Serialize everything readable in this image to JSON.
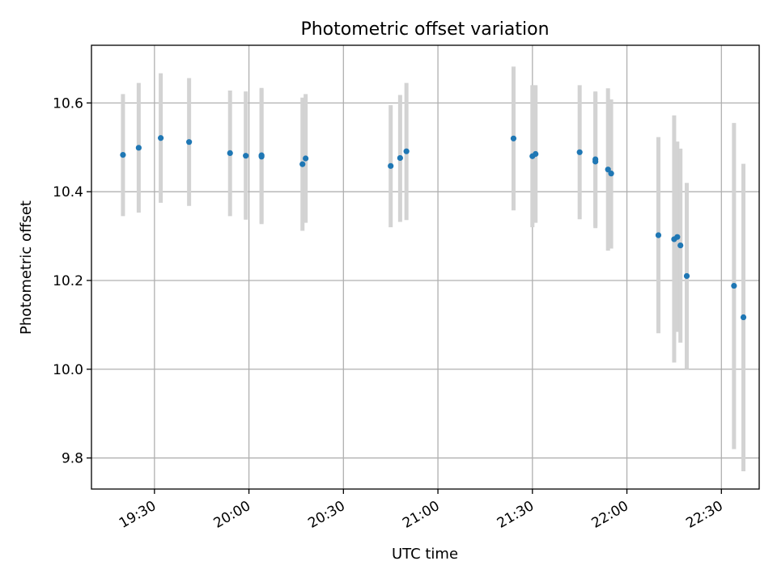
{
  "chart_data": {
    "type": "scatter",
    "title": "Photometric offset variation",
    "xlabel": "UTC time",
    "ylabel": "Photometric offset",
    "x_unit": "UTC hh:mm",
    "xlim": [
      "19:10",
      "22:42"
    ],
    "ylim": [
      9.73,
      10.73
    ],
    "xticks": [
      "19:30",
      "20:00",
      "20:30",
      "21:00",
      "21:30",
      "22:00",
      "22:30"
    ],
    "yticks": [
      9.8,
      10.0,
      10.2,
      10.4,
      10.6
    ],
    "ytick_labels": [
      "9.8",
      "10.0",
      "10.2",
      "10.4",
      "10.6"
    ],
    "grid": true,
    "point_color": "#1f77b4",
    "errorbar_color": "#d3d3d3",
    "points": [
      {
        "t": "19:20",
        "y": 10.483,
        "lo": 10.345,
        "hi": 10.62
      },
      {
        "t": "19:25",
        "y": 10.499,
        "lo": 10.353,
        "hi": 10.645
      },
      {
        "t": "19:32",
        "y": 10.521,
        "lo": 10.375,
        "hi": 10.667
      },
      {
        "t": "19:41",
        "y": 10.512,
        "lo": 10.368,
        "hi": 10.656
      },
      {
        "t": "19:54",
        "y": 10.487,
        "lo": 10.345,
        "hi": 10.628
      },
      {
        "t": "19:59",
        "y": 10.481,
        "lo": 10.337,
        "hi": 10.626
      },
      {
        "t": "20:04",
        "y": 10.479,
        "lo": 10.327,
        "hi": 10.631
      },
      {
        "t": "20:04",
        "y": 10.482,
        "lo": 10.33,
        "hi": 10.634
      },
      {
        "t": "20:17",
        "y": 10.462,
        "lo": 10.312,
        "hi": 10.612
      },
      {
        "t": "20:18",
        "y": 10.475,
        "lo": 10.33,
        "hi": 10.62
      },
      {
        "t": "20:45",
        "y": 10.458,
        "lo": 10.32,
        "hi": 10.595
      },
      {
        "t": "20:48",
        "y": 10.476,
        "lo": 10.332,
        "hi": 10.618
      },
      {
        "t": "20:50",
        "y": 10.491,
        "lo": 10.336,
        "hi": 10.645
      },
      {
        "t": "21:24",
        "y": 10.52,
        "lo": 10.358,
        "hi": 10.682
      },
      {
        "t": "21:30",
        "y": 10.48,
        "lo": 10.32,
        "hi": 10.64
      },
      {
        "t": "21:31",
        "y": 10.485,
        "lo": 10.33,
        "hi": 10.64
      },
      {
        "t": "21:45",
        "y": 10.489,
        "lo": 10.338,
        "hi": 10.64
      },
      {
        "t": "21:50",
        "y": 10.468,
        "lo": 10.318,
        "hi": 10.624
      },
      {
        "t": "21:50",
        "y": 10.473,
        "lo": 10.322,
        "hi": 10.626
      },
      {
        "t": "21:54",
        "y": 10.45,
        "lo": 10.267,
        "hi": 10.633
      },
      {
        "t": "21:55",
        "y": 10.441,
        "lo": 10.272,
        "hi": 10.608
      },
      {
        "t": "22:10",
        "y": 10.302,
        "lo": 10.081,
        "hi": 10.523
      },
      {
        "t": "22:15",
        "y": 10.293,
        "lo": 10.015,
        "hi": 10.572
      },
      {
        "t": "22:16",
        "y": 10.298,
        "lo": 10.084,
        "hi": 10.513
      },
      {
        "t": "22:17",
        "y": 10.279,
        "lo": 10.06,
        "hi": 10.497
      },
      {
        "t": "22:19",
        "y": 10.21,
        "lo": 10.0,
        "hi": 10.42
      },
      {
        "t": "22:34",
        "y": 10.188,
        "lo": 9.82,
        "hi": 10.555
      },
      {
        "t": "22:37",
        "y": 10.117,
        "lo": 9.77,
        "hi": 10.463
      }
    ]
  }
}
